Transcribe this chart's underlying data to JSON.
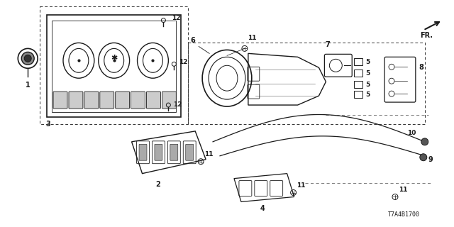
{
  "bg_color": "#ffffff",
  "line_color": "#1a1a1a",
  "fig_width": 6.4,
  "fig_height": 3.2,
  "dpi": 100,
  "diagram_id": "T7A4B1700",
  "label_fs": 7,
  "small_fs": 6.5
}
